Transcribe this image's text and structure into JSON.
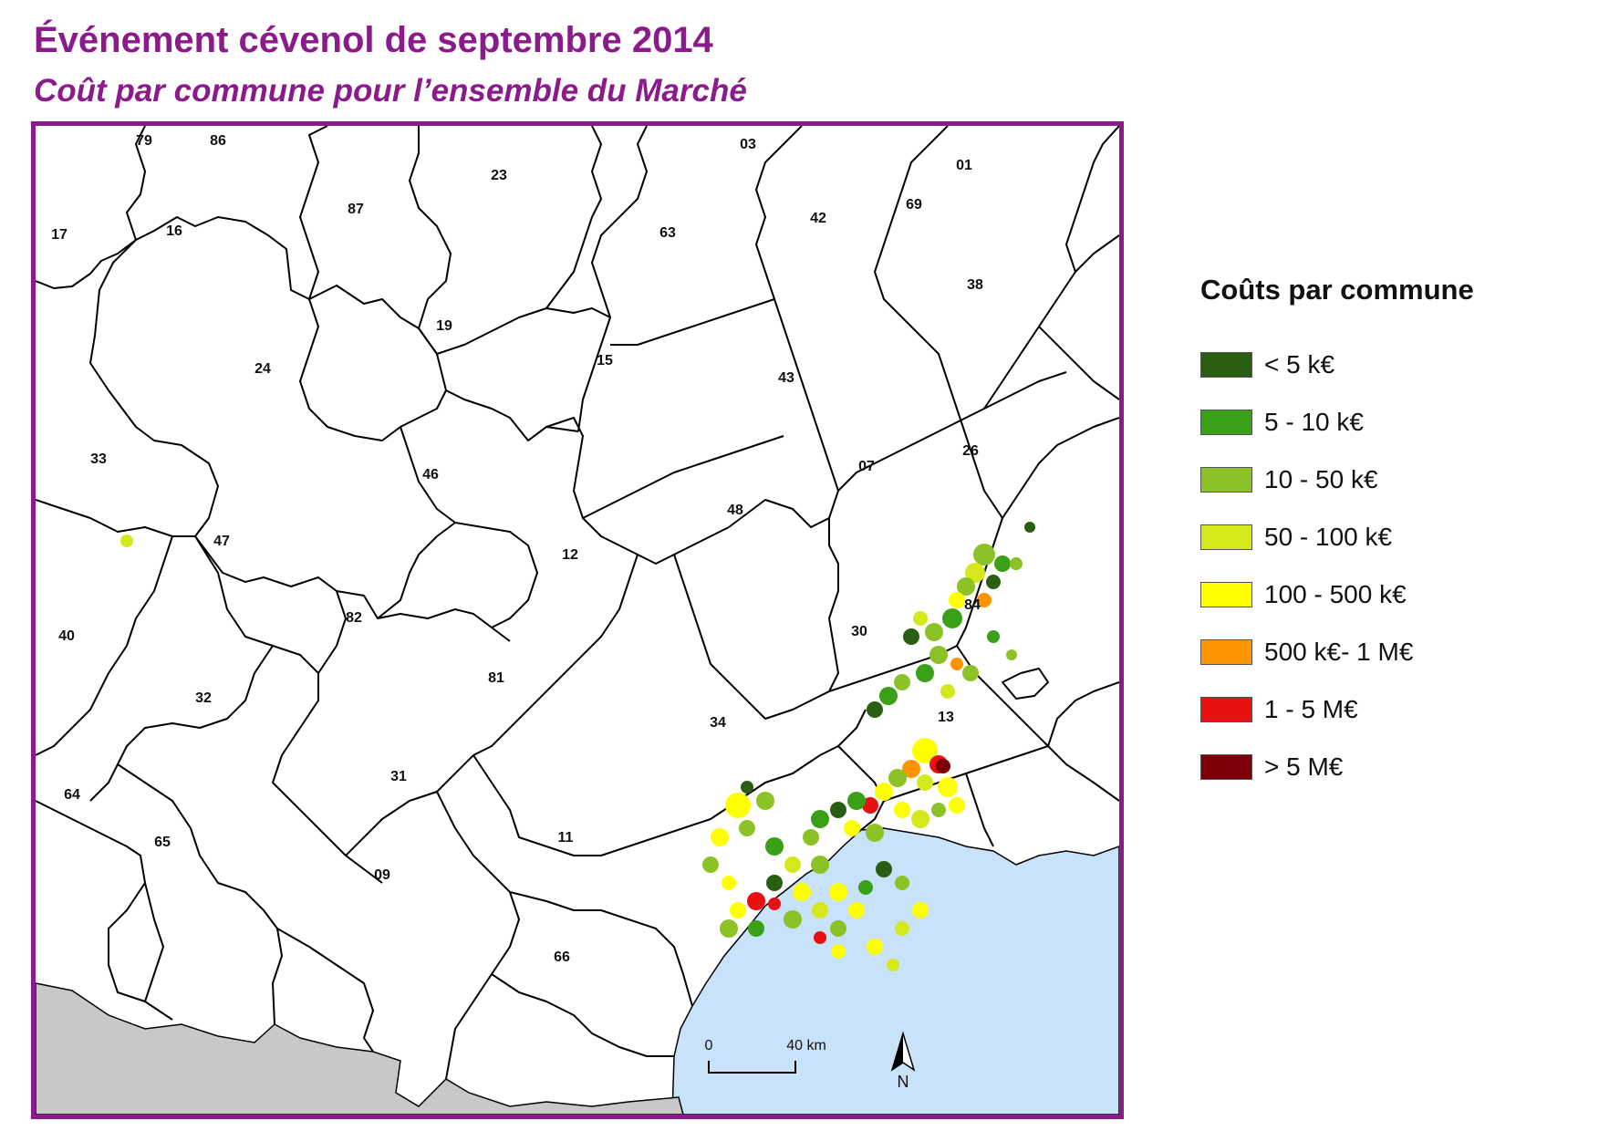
{
  "title": "Événement cévenol de septembre 2014",
  "subtitle": "Coût par commune pour l’ensemble du Marché",
  "departments": [
    {
      "code": "79"
    },
    {
      "code": "86"
    },
    {
      "code": "03"
    },
    {
      "code": "01"
    },
    {
      "code": "23"
    },
    {
      "code": "87"
    },
    {
      "code": "63"
    },
    {
      "code": "42"
    },
    {
      "code": "69"
    },
    {
      "code": "17"
    },
    {
      "code": "16"
    },
    {
      "code": "38"
    },
    {
      "code": "19"
    },
    {
      "code": "15"
    },
    {
      "code": "43"
    },
    {
      "code": "24"
    },
    {
      "code": "07"
    },
    {
      "code": "33"
    },
    {
      "code": "46"
    },
    {
      "code": "26"
    },
    {
      "code": "48"
    },
    {
      "code": "47"
    },
    {
      "code": "12"
    },
    {
      "code": "84"
    },
    {
      "code": "82"
    },
    {
      "code": "30"
    },
    {
      "code": "40"
    },
    {
      "code": "81"
    },
    {
      "code": "32"
    },
    {
      "code": "34"
    },
    {
      "code": "13"
    },
    {
      "code": "31"
    },
    {
      "code": "64"
    },
    {
      "code": "11"
    },
    {
      "code": "65"
    },
    {
      "code": "09"
    },
    {
      "code": "66"
    }
  ],
  "scale_bar": {
    "start_label": "0",
    "end_label": "40 km"
  },
  "north_arrow": {
    "label": "N"
  },
  "legend": {
    "title": "Coûts par commune",
    "items": [
      {
        "label": "< 5 k€",
        "color": "#2a5e12"
      },
      {
        "label": "5 - 10 k€",
        "color": "#3aa017"
      },
      {
        "label": "10 - 50 k€",
        "color": "#8cc226"
      },
      {
        "label": "50 - 100 k€",
        "color": "#d4e81c"
      },
      {
        "label": "100 - 500 k€",
        "color": "#ffff00"
      },
      {
        "label": "500 k€- 1 M€",
        "color": "#ff9400"
      },
      {
        "label": "1 - 5 M€",
        "color": "#e81010"
      },
      {
        "label": "> 5 M€",
        "color": "#7d0008"
      }
    ]
  },
  "colors": {
    "frame": "#8b1a8b",
    "sea": "#c8e2fa",
    "foreign_land": "#c8c8c8",
    "land": "#ffffff"
  }
}
